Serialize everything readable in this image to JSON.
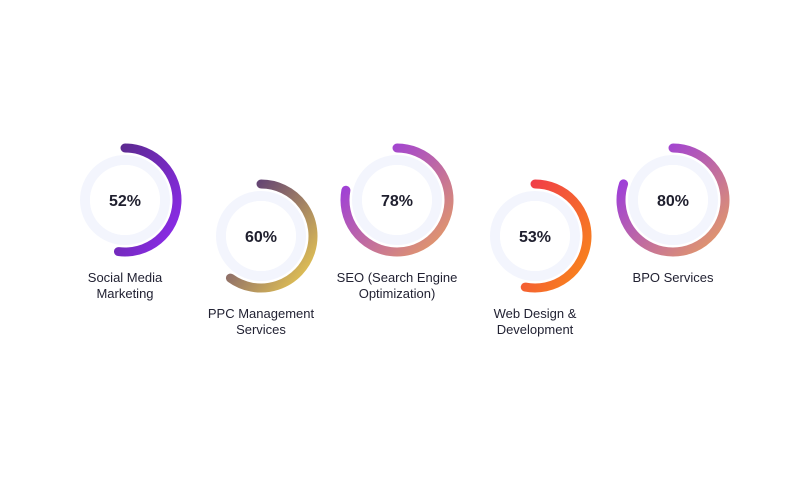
{
  "chart_data": {
    "type": "donut",
    "title": "",
    "items": [
      {
        "label": "Social Media Marketing",
        "label_lines": [
          "Social Media",
          "Marketing"
        ],
        "value": 52,
        "display": "52%",
        "colors": [
          "#5b2a8e",
          "#8f2bf0"
        ]
      },
      {
        "label": "PPC Management Services",
        "label_lines": [
          "PPC Management",
          "Services"
        ],
        "value": 60,
        "display": "60%",
        "colors": [
          "#4a2a7a",
          "#f0d050"
        ]
      },
      {
        "label": "SEO (Search Engine Optimization)",
        "label_lines": [
          "SEO (Search Engine",
          "Optimization)"
        ],
        "value": 78,
        "display": "78%",
        "colors": [
          "#8f2bf0",
          "#e8a060"
        ]
      },
      {
        "label": "Web Design & Development",
        "label_lines": [
          "Web Design &",
          "Development"
        ],
        "value": 53,
        "display": "53%",
        "colors": [
          "#f03a4a",
          "#f98a18"
        ]
      },
      {
        "label": "BPO Services",
        "label_lines": [
          "BPO Services"
        ],
        "value": 80,
        "display": "80%",
        "colors": [
          "#8f2bf0",
          "#e8a060"
        ]
      }
    ],
    "track_color": "#f3f5fd"
  }
}
